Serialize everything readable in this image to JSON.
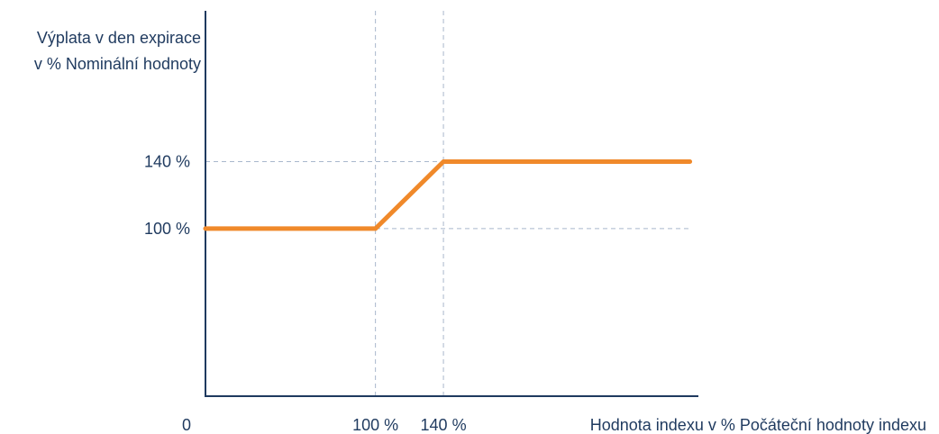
{
  "chart_data": {
    "type": "line",
    "ylabel_lines": [
      "Výplata v den expirace",
      "v % Nominální hodnoty"
    ],
    "xlabel": "Hodnota indexu v % Počáteční hodnoty indexu",
    "origin_label": "0",
    "x_ticks": [
      {
        "value": 100,
        "label": "100 %"
      },
      {
        "value": 140,
        "label": "140 %"
      }
    ],
    "y_ticks": [
      {
        "value": 100,
        "label": "100 %"
      },
      {
        "value": 140,
        "label": "140 %"
      }
    ],
    "xlim": [
      0,
      290
    ],
    "ylim": [
      0,
      230
    ],
    "series": [
      {
        "x": [
          0,
          100,
          140,
          285
        ],
        "y": [
          100,
          100,
          140,
          140
        ]
      }
    ],
    "grid": "dashed guides at tick values",
    "colors": {
      "axis": "#1f3a5f",
      "line": "#f0892a",
      "guide": "#a9b8cc",
      "text": "#1f3a5f"
    }
  }
}
